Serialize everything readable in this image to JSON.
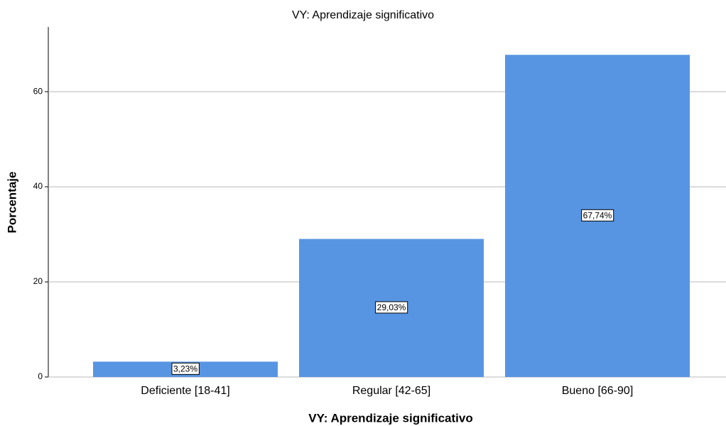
{
  "chart_data": {
    "type": "bar",
    "title": "VY: Aprendizaje significativo",
    "x_label": "VY: Aprendizaje significativo",
    "y_label": "Porcentaje",
    "categories": [
      "Deficiente [18-41]",
      "Regular  [42-65]",
      "Bueno [66-90]"
    ],
    "values": [
      3.23,
      29.03,
      67.74
    ],
    "value_labels": [
      "3,23%",
      "29,03%",
      "67,74%"
    ],
    "color": "#5795e3",
    "ylim": [
      0,
      73.6
    ],
    "yticks": [
      0,
      20,
      40,
      60
    ],
    "grid": true
  }
}
